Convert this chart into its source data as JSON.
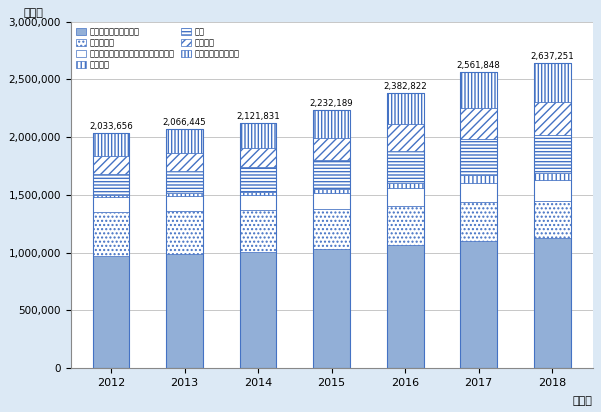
{
  "years": [
    2012,
    2013,
    2014,
    2015,
    2016,
    2017,
    2018
  ],
  "totals": [
    2033656,
    2066445,
    2121831,
    2232189,
    2382822,
    2561848,
    2637251
  ],
  "series": {
    "身分に基づく在留資格": [
      974780,
      991511,
      1008993,
      1031320,
      1066240,
      1104496,
      1124047
    ],
    "特別永住者": [
      381364,
      373221,
      358409,
      348626,
      338950,
      329822,
      326190
    ],
    "その他（家族滞在、文化活動、研修）": [
      124817,
      126035,
      130033,
      137692,
      153386,
      170880,
      178588
    ],
    "特定活動": [
      20159,
      22673,
      28001,
      37175,
      47039,
      64776,
      64545
    ],
    "留学": [
      180919,
      193073,
      214525,
      246679,
      277331,
      311505,
      324245
    ],
    "技能実習": [
      151477,
      155206,
      167626,
      192655,
      228588,
      274233,
      285776
    ],
    "専門的・技術的分野": [
      200140,
      204726,
      214244,
      238042,
      271288,
      306136,
      333860
    ]
  },
  "series_order": [
    "身分に基づく在留資格",
    "特別永住者",
    "その他（家族滞在、文化活動、研修）",
    "特定活動",
    "留学",
    "技能実習",
    "専門的・技術的分野"
  ],
  "segment_styles": {
    "身分に基づく在留資格": {
      "facecolor": "#92afd7",
      "hatch": "",
      "edgecolor": "#4472c4"
    },
    "特別永住者": {
      "facecolor": "#ffffff",
      "hatch": "....",
      "edgecolor": "#4472c4"
    },
    "その他（家族滞在、文化活動、研修）": {
      "facecolor": "#ffffff",
      "hatch": "=====",
      "edgecolor": "#4472c4"
    },
    "特定活動": {
      "facecolor": "#ffffff",
      "hatch": "||||",
      "edgecolor": "#4472c4"
    },
    "留学": {
      "facecolor": "#ffffff",
      "hatch": "-----",
      "edgecolor": "#4472c4"
    },
    "技能実習": {
      "facecolor": "#ffffff",
      "hatch": "////",
      "edgecolor": "#4472c4"
    },
    "専門的・技術的分野": {
      "facecolor": "#ffffff",
      "hatch": "|||||",
      "edgecolor": "#4472c4"
    }
  },
  "legend_order": [
    "身分に基づく在留資格",
    "特別永住者",
    "その他（家族滞在、文化活動、研修）",
    "特定活動",
    "留学",
    "技能実習",
    "専門的・技術的分野"
  ],
  "title_y_label": "（人）",
  "x_suffix": "（年）",
  "background_color": "#dce9f5",
  "plot_bg_color": "#ffffff",
  "ylim": [
    0,
    3000000
  ],
  "yticks": [
    0,
    500000,
    1000000,
    1500000,
    2000000,
    2500000,
    3000000
  ]
}
